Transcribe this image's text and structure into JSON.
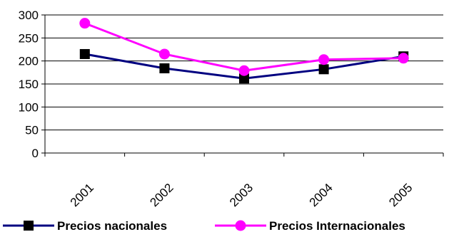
{
  "chart_data": {
    "type": "line",
    "categories": [
      "2001",
      "2002",
      "2003",
      "2004",
      "2005"
    ],
    "ylim": [
      0,
      300
    ],
    "yticks": [
      0,
      50,
      100,
      150,
      200,
      250,
      300
    ],
    "grid": true,
    "legend_position": "bottom",
    "series": [
      {
        "name": "Precios nacionales",
        "color": "#000080",
        "marker": "square",
        "marker_color": "#000000",
        "values": [
          215,
          184,
          162,
          182,
          210
        ]
      },
      {
        "name": "Precios Internacionales",
        "color": "#ff00ff",
        "marker": "circle",
        "marker_color": "#ff00ff",
        "values": [
          282,
          215,
          179,
          203,
          206
        ]
      }
    ]
  }
}
